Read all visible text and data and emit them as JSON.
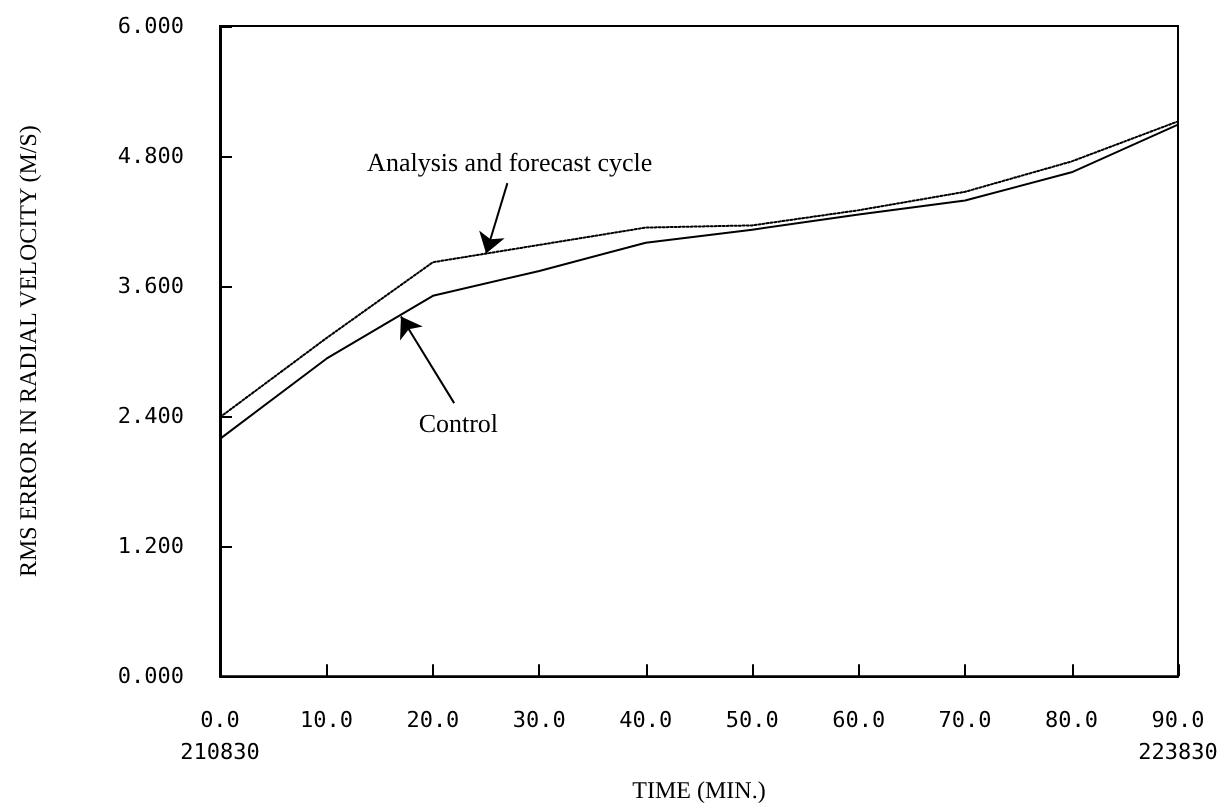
{
  "chart_data": {
    "type": "line",
    "xlabel": "TIME (MIN.)",
    "ylabel": "RMS ERROR IN RADIAL VELOCITY (M/S)",
    "x": [
      0,
      10,
      20,
      30,
      40,
      50,
      60,
      70,
      80,
      90
    ],
    "series": [
      {
        "color": "#000000",
        "line_style": "solid",
        "values": [
          2.19,
          2.93,
          3.51,
          3.74,
          4.0,
          4.12,
          4.26,
          4.39,
          4.65,
          5.09
        ]
      },
      {
        "color": "#000000",
        "line_style": "dotted",
        "values": [
          2.39,
          3.12,
          3.82,
          3.98,
          4.14,
          4.16,
          4.3,
          4.47,
          4.75,
          5.12
        ]
      }
    ],
    "xlim": [
      0,
      90
    ],
    "ylim": [
      0,
      6
    ],
    "xticks": [
      {
        "value": 0,
        "label": "0.0\n210830"
      },
      {
        "value": 10,
        "label": "10.0"
      },
      {
        "value": 20,
        "label": "20.0"
      },
      {
        "value": 30,
        "label": "30.0"
      },
      {
        "value": 40,
        "label": "40.0"
      },
      {
        "value": 50,
        "label": "50.0"
      },
      {
        "value": 60,
        "label": "60.0"
      },
      {
        "value": 70,
        "label": "70.0"
      },
      {
        "value": 80,
        "label": "80.0"
      },
      {
        "value": 90,
        "label": "90.0\n223830"
      }
    ],
    "yticks": [
      {
        "value": 0,
        "label": "0.000"
      },
      {
        "value": 1.2,
        "label": "1.200"
      },
      {
        "value": 2.4,
        "label": "2.400"
      },
      {
        "value": 3.6,
        "label": "3.600"
      },
      {
        "value": 4.8,
        "label": "4.800"
      },
      {
        "value": 6,
        "label": "6.000"
      }
    ],
    "annotations": [
      {
        "text": "Analysis and forecast cycle",
        "x": 25,
        "y": 3.9
      },
      {
        "text": "Control",
        "x": 17,
        "y": 3.32
      }
    ],
    "grid": false,
    "marker": "none"
  }
}
